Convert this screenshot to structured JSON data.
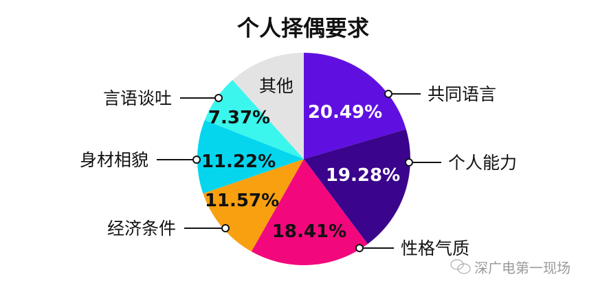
{
  "chart_data": {
    "type": "pie",
    "title": "个人择偶要求",
    "start": "top",
    "direction": "clockwise",
    "slices": [
      {
        "label": "共同语言",
        "value": 20.49,
        "value_label": "20.49%",
        "color": "#5f10e0",
        "text_color": "#ffffff"
      },
      {
        "label": "个人能力",
        "value": 19.28,
        "value_label": "19.28%",
        "color": "#3a058c",
        "text_color": "#ffffff"
      },
      {
        "label": "性格气质",
        "value": 18.41,
        "value_label": "18.41%",
        "color": "#f2087c",
        "text_color": "#111111"
      },
      {
        "label": "经济条件",
        "value": 11.57,
        "value_label": "11.57%",
        "color": "#f9a011",
        "text_color": "#111111"
      },
      {
        "label": "身材相貌",
        "value": 11.22,
        "value_label": "11.22%",
        "color": "#05d6ee",
        "text_color": "#111111"
      },
      {
        "label": "言语谈吐",
        "value": 7.37,
        "value_label": "7.37%",
        "color": "#3af6ec",
        "text_color": "#111111"
      },
      {
        "label": "其他",
        "value": 11.66,
        "color": "#e3e3e3",
        "text_color": "#111111"
      }
    ]
  },
  "watermark": {
    "text": "深广电第一现场",
    "icon": "wechat-icon"
  }
}
